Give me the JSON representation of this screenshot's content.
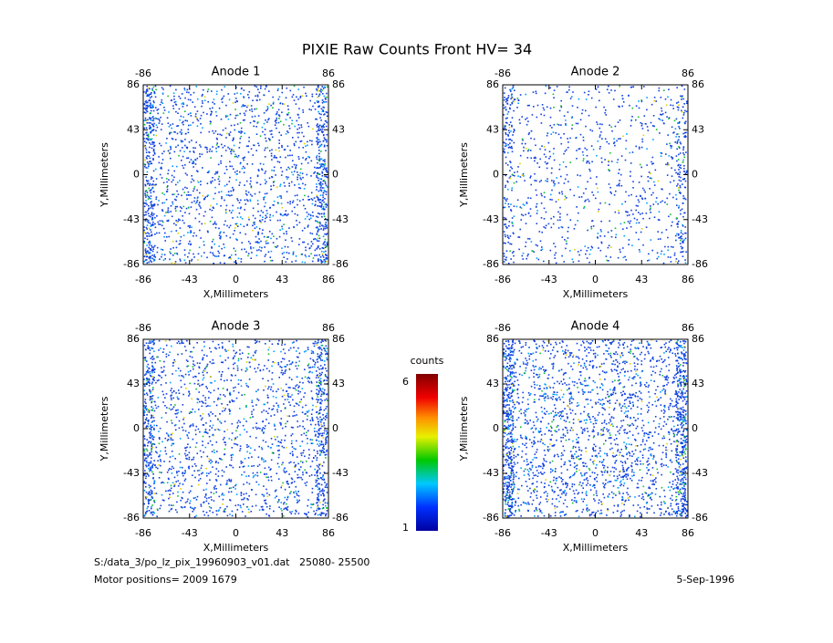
{
  "title": "PIXIE Raw Counts Front HV= 34",
  "footer": {
    "file": "S:/data_3/po_lz_pix_19960903_v01.dat   25080- 25500",
    "motor": "Motor positions= 2009 1679",
    "date": "5-Sep-1996"
  },
  "chart_data": [
    {
      "type": "image",
      "title": "Anode 1",
      "xlabel": "X,Millimeters",
      "ylabel": "Y,Millimeters",
      "xlim": [
        -86,
        86
      ],
      "ylim": [
        -86,
        86
      ],
      "xticks": [
        -86,
        -43,
        0,
        43,
        86
      ],
      "yticks": [
        -86,
        -43,
        0,
        43,
        86
      ]
    },
    {
      "type": "image",
      "title": "Anode 2",
      "xlabel": "X,Millimeters",
      "ylabel": "Y,Millimeters",
      "xlim": [
        -86,
        86
      ],
      "ylim": [
        -86,
        86
      ],
      "xticks": [
        -86,
        -43,
        0,
        43,
        86
      ],
      "yticks": [
        -86,
        -43,
        0,
        43,
        86
      ]
    },
    {
      "type": "image",
      "title": "Anode 3",
      "xlabel": "X,Millimeters",
      "ylabel": "Y,Millimeters",
      "xlim": [
        -86,
        86
      ],
      "ylim": [
        -86,
        86
      ],
      "xticks": [
        -86,
        -43,
        0,
        43,
        86
      ],
      "yticks": [
        -86,
        -43,
        0,
        43,
        86
      ]
    },
    {
      "type": "image",
      "title": "Anode 4",
      "xlabel": "X,Millimeters",
      "ylabel": "Y,Millimeters",
      "xlim": [
        -86,
        86
      ],
      "ylim": [
        -86,
        86
      ],
      "xticks": [
        -86,
        -43,
        0,
        43,
        86
      ],
      "yticks": [
        -86,
        -43,
        0,
        43,
        86
      ]
    },
    {
      "type": "colorbar",
      "label": "counts",
      "ylim": [
        1,
        6
      ],
      "yticks": [
        1,
        6
      ]
    }
  ]
}
